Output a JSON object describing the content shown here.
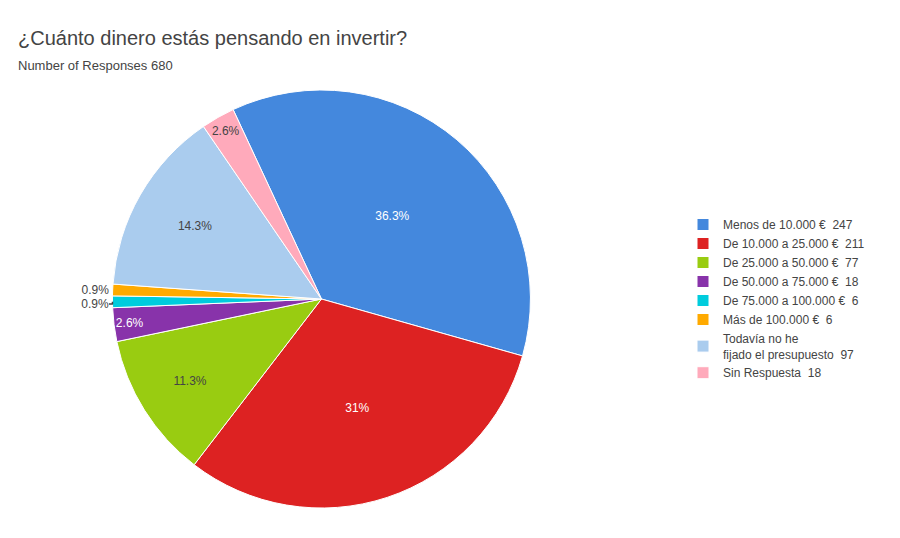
{
  "chart_data": {
    "type": "pie",
    "title": "¿Cuánto dinero estás pensando en invertir?",
    "subtitle": "Number of Responses 680",
    "categories": [
      "Menos de 10.000 €  247",
      "De 10.000 a 25.000 €  211",
      "De 25.000 a 50.000 €  77",
      "De 50.000 a 75.000 €  18",
      "De 75.000 a 100.000 €  6",
      "Más de 100.000 €  6",
      "Todavía no he\nfijado el presupuesto  97",
      "Sin Respuesta  18"
    ],
    "values": [
      36.3,
      31.0,
      11.3,
      2.6,
      0.9,
      0.9,
      14.3,
      2.6
    ],
    "value_labels": [
      "36.3%",
      "31%",
      "11.3%",
      "2.6%",
      "0.9%",
      "0.9%",
      "14.3%",
      "2.6%"
    ],
    "colors": [
      "#4488dd",
      "#dd2222",
      "#99cc11",
      "#8833aa",
      "#00ccdd",
      "#ffaa00",
      "#aaccee",
      "#ffaabb"
    ],
    "data_labels": true,
    "legend": "right"
  }
}
